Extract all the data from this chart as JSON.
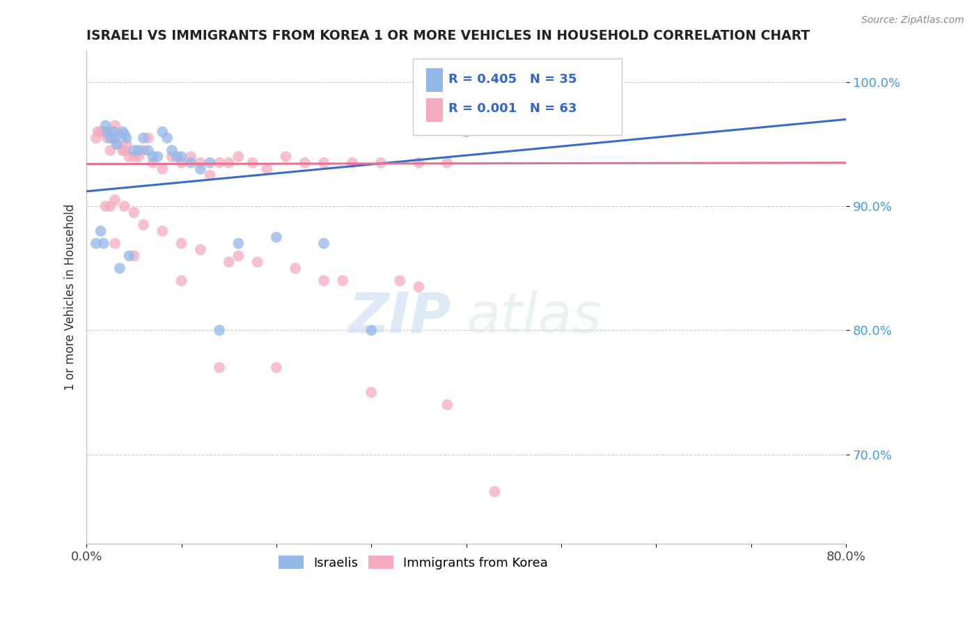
{
  "title": "ISRAELI VS IMMIGRANTS FROM KOREA 1 OR MORE VEHICLES IN HOUSEHOLD CORRELATION CHART",
  "source_text": "Source: ZipAtlas.com",
  "ylabel": "1 or more Vehicles in Household",
  "xlim": [
    0.0,
    0.8
  ],
  "ylim": [
    0.628,
    1.025
  ],
  "xticks": [
    0.0,
    0.1,
    0.2,
    0.3,
    0.4,
    0.5,
    0.6,
    0.7,
    0.8
  ],
  "xticklabels": [
    "0.0%",
    "",
    "",
    "",
    "",
    "",
    "",
    "",
    "80.0%"
  ],
  "ytick_positions": [
    0.7,
    0.8,
    0.9,
    1.0
  ],
  "ytick_labels": [
    "70.0%",
    "80.0%",
    "90.0%",
    "100.0%"
  ],
  "legend_label1": "Israelis",
  "legend_label2": "Immigrants from Korea",
  "R1": 0.405,
  "N1": 35,
  "R2": 0.001,
  "N2": 63,
  "blue_color": "#93B8E8",
  "pink_color": "#F5ABBE",
  "blue_line_color": "#3A6BC8",
  "pink_line_color": "#E87090",
  "watermark_zip": "ZIP",
  "watermark_atlas": "atlas",
  "israelis_x": [
    0.01,
    0.015,
    0.018,
    0.02,
    0.022,
    0.025,
    0.028,
    0.03,
    0.032,
    0.035,
    0.038,
    0.04,
    0.042,
    0.045,
    0.05,
    0.055,
    0.06,
    0.065,
    0.07,
    0.075,
    0.08,
    0.085,
    0.09,
    0.095,
    0.1,
    0.11,
    0.12,
    0.13,
    0.14,
    0.16,
    0.2,
    0.25,
    0.3,
    0.35,
    0.4
  ],
  "israelis_y": [
    0.87,
    0.88,
    0.87,
    0.965,
    0.96,
    0.955,
    0.96,
    0.955,
    0.95,
    0.85,
    0.96,
    0.958,
    0.955,
    0.86,
    0.945,
    0.945,
    0.955,
    0.945,
    0.94,
    0.94,
    0.96,
    0.955,
    0.945,
    0.94,
    0.94,
    0.935,
    0.93,
    0.935,
    0.8,
    0.87,
    0.875,
    0.87,
    0.8,
    0.965,
    0.96
  ],
  "korea_x": [
    0.01,
    0.012,
    0.015,
    0.018,
    0.02,
    0.022,
    0.025,
    0.028,
    0.03,
    0.032,
    0.035,
    0.038,
    0.04,
    0.042,
    0.045,
    0.05,
    0.055,
    0.06,
    0.065,
    0.07,
    0.08,
    0.09,
    0.1,
    0.11,
    0.12,
    0.13,
    0.14,
    0.15,
    0.16,
    0.175,
    0.19,
    0.21,
    0.23,
    0.25,
    0.28,
    0.31,
    0.35,
    0.38,
    0.02,
    0.025,
    0.03,
    0.04,
    0.05,
    0.06,
    0.08,
    0.1,
    0.12,
    0.15,
    0.18,
    0.22,
    0.27,
    0.33,
    0.03,
    0.05,
    0.1,
    0.16,
    0.25,
    0.35,
    0.14,
    0.2,
    0.3,
    0.38,
    0.43
  ],
  "korea_y": [
    0.955,
    0.96,
    0.96,
    0.96,
    0.96,
    0.955,
    0.945,
    0.96,
    0.965,
    0.95,
    0.958,
    0.945,
    0.945,
    0.95,
    0.94,
    0.94,
    0.94,
    0.945,
    0.955,
    0.935,
    0.93,
    0.94,
    0.935,
    0.94,
    0.935,
    0.925,
    0.935,
    0.935,
    0.94,
    0.935,
    0.93,
    0.94,
    0.935,
    0.935,
    0.935,
    0.935,
    0.935,
    0.935,
    0.9,
    0.9,
    0.905,
    0.9,
    0.895,
    0.885,
    0.88,
    0.87,
    0.865,
    0.855,
    0.855,
    0.85,
    0.84,
    0.84,
    0.87,
    0.86,
    0.84,
    0.86,
    0.84,
    0.835,
    0.77,
    0.77,
    0.75,
    0.74,
    0.67
  ],
  "blue_line_x0": 0.0,
  "blue_line_y0": 0.912,
  "blue_line_x1": 0.8,
  "blue_line_y1": 0.97,
  "pink_line_x0": 0.0,
  "pink_line_y0": 0.934,
  "pink_line_x1": 0.8,
  "pink_line_y1": 0.935
}
